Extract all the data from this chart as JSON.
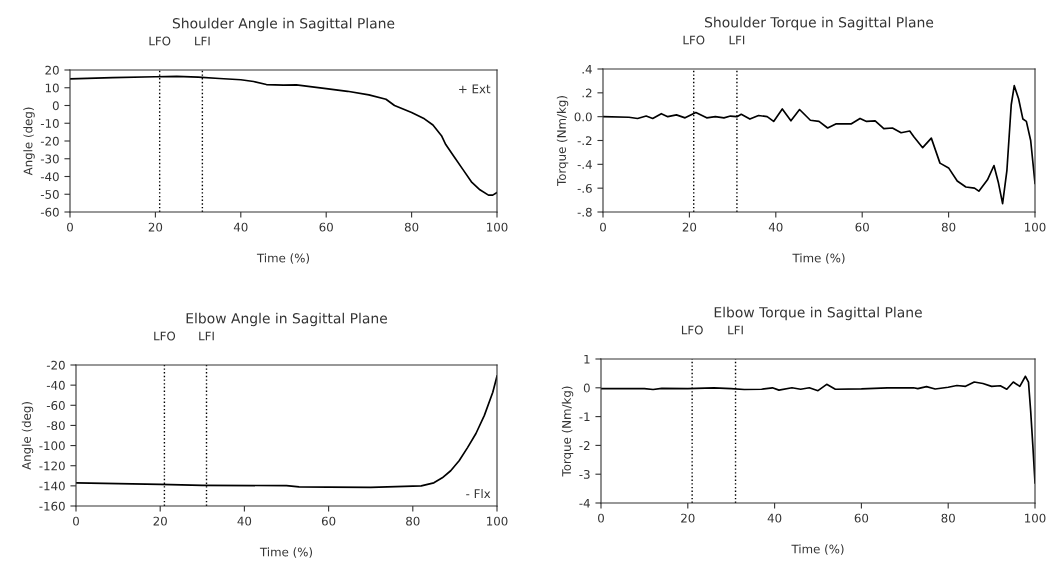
{
  "chart_data": [
    {
      "type": "line",
      "title": "Shoulder Angle in Sagittal Plane",
      "xlabel": "Time (%)",
      "ylabel": "Angle (deg)",
      "annotations": [
        "+ Ext"
      ],
      "xlim": [
        0,
        100
      ],
      "xticks": [
        0,
        20,
        40,
        60,
        80,
        100
      ],
      "ylim": [
        -60,
        20
      ],
      "yticks": [
        -60,
        -50,
        -40,
        -30,
        -20,
        -10,
        0,
        10,
        20
      ],
      "grid": false,
      "legend": false,
      "ref_lines": [
        {
          "axis": "x",
          "value": 21,
          "label": "LFO",
          "line_style": "dotted",
          "color": "#000000"
        },
        {
          "axis": "x",
          "value": 31,
          "label": "LFI",
          "line_style": "dotted",
          "color": "#000000"
        }
      ],
      "series": [
        {
          "color": "#000000",
          "x": [
            0,
            10,
            20,
            25,
            30,
            35,
            40,
            43,
            46,
            50,
            53,
            60,
            65,
            70,
            74,
            76,
            80,
            83,
            85,
            87,
            88,
            90,
            92,
            94,
            96,
            98,
            99,
            100
          ],
          "values": [
            15,
            15.7,
            16.2,
            16.4,
            16,
            15.2,
            14.5,
            13.5,
            11.8,
            11.5,
            11.6,
            9.5,
            8,
            6,
            3.5,
            0,
            -4,
            -7.5,
            -11,
            -17,
            -22,
            -29,
            -36,
            -43,
            -47.5,
            -50.5,
            -50.5,
            -49
          ]
        }
      ]
    },
    {
      "type": "line",
      "title": "Shoulder Torque in Sagittal Plane",
      "xlabel": "Time (%)",
      "ylabel": "Torque (Nm/kg)",
      "xlim": [
        0,
        100
      ],
      "xticks": [
        0,
        20,
        40,
        60,
        80,
        100
      ],
      "ylim": [
        -0.8,
        0.4
      ],
      "yticks": [
        {
          "value": -0.8,
          "label": "-.8"
        },
        {
          "value": -0.6,
          "label": "-.6"
        },
        {
          "value": -0.4,
          "label": "-.4"
        },
        {
          "value": -0.2,
          "label": "-.2"
        },
        {
          "value": 0,
          "label": "0.0"
        },
        {
          "value": 0.2,
          "label": ".2"
        },
        {
          "value": 0.4,
          "label": ".4"
        }
      ],
      "grid": false,
      "legend": false,
      "ref_lines": [
        {
          "axis": "x",
          "value": 21,
          "label": "LFO",
          "line_style": "dotted",
          "color": "#000000"
        },
        {
          "axis": "x",
          "value": 31,
          "label": "LFI",
          "line_style": "dotted",
          "color": "#000000"
        }
      ],
      "series": [
        {
          "color": "#000000",
          "x": [
            0,
            6,
            8,
            10,
            11.5,
            13.5,
            15,
            17,
            19,
            21.5,
            24,
            26,
            28,
            29.5,
            31,
            32,
            34,
            36,
            38,
            39.5,
            41.5,
            43.5,
            45.5,
            48,
            50,
            52,
            54,
            57.5,
            59.5,
            61,
            63,
            65,
            67,
            69,
            71,
            72,
            74,
            76,
            78,
            80,
            82,
            84,
            86,
            87,
            89,
            90.5,
            91.5,
            92.5,
            93.5,
            94.5,
            95.2,
            96.2,
            97.2,
            98,
            99,
            100
          ],
          "values": [
            0,
            -0.005,
            -0.015,
            0.005,
            -0.015,
            0.025,
            0,
            0.015,
            -0.01,
            0.035,
            -0.01,
            0,
            -0.01,
            0.005,
            0,
            0.02,
            -0.02,
            0.01,
            0,
            -0.04,
            0.065,
            -0.035,
            0.06,
            -0.03,
            -0.04,
            -0.095,
            -0.06,
            -0.06,
            -0.015,
            -0.04,
            -0.035,
            -0.1,
            -0.095,
            -0.135,
            -0.12,
            -0.17,
            -0.26,
            -0.18,
            -0.39,
            -0.43,
            -0.54,
            -0.59,
            -0.6,
            -0.625,
            -0.53,
            -0.41,
            -0.55,
            -0.73,
            -0.45,
            0.1,
            0.26,
            0.15,
            -0.02,
            -0.04,
            -0.2,
            -0.56
          ]
        }
      ]
    },
    {
      "type": "line",
      "title": "Elbow Angle in Sagittal Plane",
      "xlabel": "Time (%)",
      "ylabel": "Angle (deg)",
      "annotations": [
        "- Flx"
      ],
      "xlim": [
        0,
        100
      ],
      "xticks": [
        0,
        20,
        40,
        60,
        80,
        100
      ],
      "ylim": [
        -160,
        -20
      ],
      "yticks": [
        -160,
        -140,
        -120,
        -100,
        -80,
        -60,
        -40,
        -20
      ],
      "grid": false,
      "legend": false,
      "ref_lines": [
        {
          "axis": "x",
          "value": 21,
          "label": "LFO",
          "line_style": "dotted",
          "color": "#000000"
        },
        {
          "axis": "x",
          "value": 31,
          "label": "LFI",
          "line_style": "dotted",
          "color": "#000000"
        }
      ],
      "series": [
        {
          "color": "#000000",
          "x": [
            0,
            20,
            30,
            50,
            53,
            60,
            70,
            78,
            82,
            85,
            87,
            89,
            91,
            93,
            95,
            97,
            99,
            100
          ],
          "values": [
            -137,
            -138.5,
            -139.5,
            -139.8,
            -141,
            -141.3,
            -141.5,
            -140.5,
            -140,
            -137,
            -132,
            -125,
            -115,
            -102,
            -88,
            -70,
            -47,
            -31
          ]
        }
      ]
    },
    {
      "type": "line",
      "title": "Elbow Torque in Sagittal Plane",
      "xlabel": "Time (%)",
      "ylabel": "Torque (Nm/kg)",
      "xlim": [
        0,
        100
      ],
      "xticks": [
        0,
        20,
        40,
        60,
        80,
        100
      ],
      "ylim": [
        -4,
        1
      ],
      "yticks": [
        -4,
        -3,
        -2,
        -1,
        0,
        1
      ],
      "grid": false,
      "legend": false,
      "ref_lines": [
        {
          "axis": "x",
          "value": 21,
          "label": "LFO",
          "line_style": "dotted",
          "color": "#000000"
        },
        {
          "axis": "x",
          "value": 31,
          "label": "LFI",
          "line_style": "dotted",
          "color": "#000000"
        }
      ],
      "series": [
        {
          "color": "#000000",
          "x": [
            0,
            10,
            12,
            14,
            20,
            26,
            30,
            33,
            37,
            39.5,
            41,
            44,
            46,
            48,
            50,
            52,
            54,
            60,
            66,
            72,
            73,
            75,
            77,
            80,
            82,
            84,
            86,
            88,
            90,
            92,
            93.5,
            95,
            96.5,
            97.8,
            98.5,
            99,
            99.5,
            100
          ],
          "values": [
            -0.03,
            -0.03,
            -0.06,
            -0.02,
            -0.03,
            0,
            -0.03,
            -0.06,
            -0.05,
            0,
            -0.08,
            0,
            -0.05,
            0,
            -0.1,
            0.12,
            -0.05,
            -0.04,
            0,
            0,
            -0.03,
            0.04,
            -0.04,
            0.02,
            0.08,
            0.05,
            0.2,
            0.15,
            0.05,
            0.07,
            -0.05,
            0.2,
            0.05,
            0.4,
            0.2,
            -0.8,
            -2,
            -3.3
          ]
        }
      ]
    }
  ]
}
